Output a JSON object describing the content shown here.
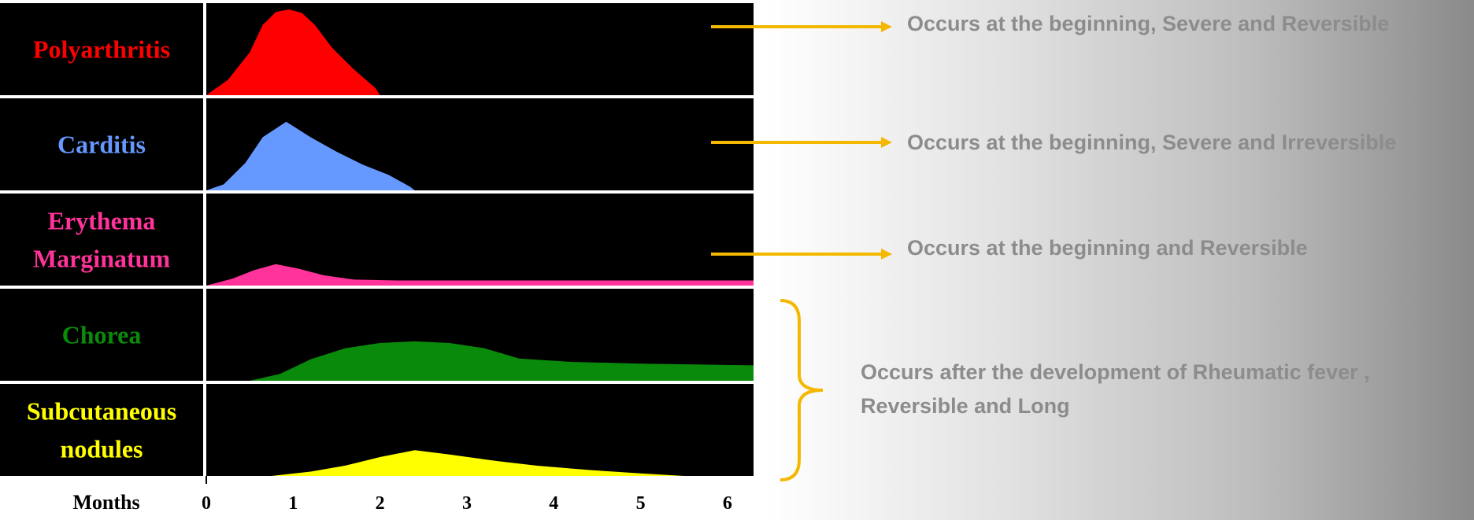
{
  "chart_data": {
    "type": "area",
    "xlabel": "Months",
    "xlim": [
      0,
      6.3
    ],
    "xticks": [
      "0",
      "1",
      "2",
      "3",
      "4",
      "5",
      "6"
    ],
    "panels": [
      {
        "name": "Polyarthritis",
        "label_lines": [
          "Polyarthritis"
        ],
        "color": "#ff0000",
        "points": [
          [
            0,
            0
          ],
          [
            0.25,
            0.18
          ],
          [
            0.5,
            0.5
          ],
          [
            0.65,
            0.82
          ],
          [
            0.8,
            0.97
          ],
          [
            0.95,
            1.0
          ],
          [
            1.1,
            0.96
          ],
          [
            1.25,
            0.82
          ],
          [
            1.45,
            0.55
          ],
          [
            1.7,
            0.3
          ],
          [
            1.95,
            0.08
          ],
          [
            2.0,
            0
          ]
        ]
      },
      {
        "name": "Carditis",
        "label_lines": [
          "Carditis"
        ],
        "color": "#6699ff",
        "points": [
          [
            0,
            0
          ],
          [
            0.2,
            0.07
          ],
          [
            0.45,
            0.32
          ],
          [
            0.65,
            0.62
          ],
          [
            0.92,
            0.8
          ],
          [
            1.2,
            0.62
          ],
          [
            1.5,
            0.45
          ],
          [
            1.8,
            0.3
          ],
          [
            2.1,
            0.18
          ],
          [
            2.35,
            0.04
          ],
          [
            2.4,
            0
          ]
        ]
      },
      {
        "name": "Erythema Marginatum",
        "label_lines": [
          "Erythema",
          "Marginatum"
        ],
        "color": "#ff3399",
        "points": [
          [
            0,
            0
          ],
          [
            0.3,
            0.08
          ],
          [
            0.55,
            0.18
          ],
          [
            0.8,
            0.25
          ],
          [
            1.05,
            0.2
          ],
          [
            1.35,
            0.12
          ],
          [
            1.7,
            0.07
          ],
          [
            2.2,
            0.06
          ],
          [
            6.3,
            0.06
          ],
          [
            6.3,
            0
          ]
        ]
      },
      {
        "name": "Chorea",
        "label_lines": [
          "Chorea"
        ],
        "color": "#0a8a0a",
        "points": [
          [
            0.5,
            0
          ],
          [
            0.85,
            0.08
          ],
          [
            1.2,
            0.25
          ],
          [
            1.6,
            0.38
          ],
          [
            2.0,
            0.44
          ],
          [
            2.4,
            0.46
          ],
          [
            2.8,
            0.44
          ],
          [
            3.2,
            0.38
          ],
          [
            3.6,
            0.26
          ],
          [
            4.2,
            0.22
          ],
          [
            5.0,
            0.2
          ],
          [
            6.3,
            0.18
          ],
          [
            6.3,
            0
          ]
        ]
      },
      {
        "name": "Subcutaneous nodules",
        "label_lines": [
          "Subcutaneous",
          "nodules"
        ],
        "color": "#ffff00",
        "points": [
          [
            0.75,
            0
          ],
          [
            1.2,
            0.05
          ],
          [
            1.6,
            0.12
          ],
          [
            2.0,
            0.22
          ],
          [
            2.4,
            0.3
          ],
          [
            2.8,
            0.25
          ],
          [
            3.3,
            0.18
          ],
          [
            3.8,
            0.12
          ],
          [
            4.4,
            0.07
          ],
          [
            5.0,
            0.03
          ],
          [
            5.5,
            0
          ],
          [
            5.5,
            0
          ]
        ]
      }
    ]
  },
  "annotations": {
    "arrow_color": "#f5b800",
    "note1": "Occurs at the beginning, Severe and Reversible",
    "note2": "Occurs at the beginning, Severe and Irreversible",
    "note3": "Occurs at the beginning and Reversible",
    "note4": "Occurs after the development of Rheumatic fever , Reversible and Long"
  }
}
